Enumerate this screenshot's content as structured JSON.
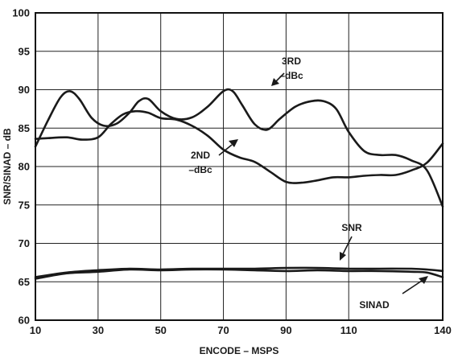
{
  "chart_data": {
    "type": "line",
    "title": "",
    "xlabel": "ENCODE – MSPS",
    "ylabel": "SNR/SINAD – dB",
    "xlim": [
      10,
      140
    ],
    "ylim": [
      60,
      100
    ],
    "x_ticks": [
      10,
      30,
      50,
      70,
      90,
      110,
      140
    ],
    "y_ticks": [
      60,
      65,
      70,
      75,
      80,
      85,
      90,
      95,
      100
    ],
    "grid": true,
    "series": [
      {
        "name": "3RD –dBc",
        "x": [
          10,
          14,
          18,
          21,
          24,
          28,
          32,
          36,
          40,
          43,
          46,
          50,
          55,
          60,
          65,
          70,
          73,
          76,
          80,
          84,
          88,
          93,
          98,
          102,
          106,
          110,
          115,
          120,
          125,
          130,
          135,
          140
        ],
        "y": [
          82.6,
          86.0,
          89.0,
          89.8,
          88.8,
          86.3,
          85.3,
          85.6,
          87.0,
          88.5,
          88.8,
          87.2,
          86.2,
          86.4,
          87.8,
          89.8,
          89.8,
          88.0,
          85.5,
          84.8,
          86.2,
          87.8,
          88.5,
          88.5,
          87.5,
          84.5,
          82.0,
          81.5,
          81.5,
          80.8,
          79.5,
          74.8
        ]
      },
      {
        "name": "2ND –dBc",
        "x": [
          10,
          14,
          20,
          25,
          30,
          34,
          38,
          42,
          46,
          50,
          55,
          60,
          65,
          70,
          75,
          80,
          85,
          90,
          95,
          100,
          105,
          110,
          115,
          120,
          125,
          130,
          135,
          140
        ],
        "y": [
          83.6,
          83.7,
          83.8,
          83.5,
          83.8,
          85.5,
          86.8,
          87.2,
          87.0,
          86.3,
          86.1,
          85.3,
          84.0,
          82.2,
          81.2,
          80.6,
          79.3,
          78.0,
          77.9,
          78.2,
          78.6,
          78.6,
          78.8,
          78.9,
          78.9,
          79.5,
          80.5,
          83.0
        ]
      },
      {
        "name": "SNR",
        "x": [
          10,
          20,
          30,
          40,
          50,
          60,
          70,
          80,
          90,
          100,
          110,
          120,
          130,
          135,
          140
        ],
        "y": [
          65.6,
          66.2,
          66.5,
          66.7,
          66.6,
          66.7,
          66.7,
          66.7,
          66.8,
          66.8,
          66.7,
          66.7,
          66.7,
          66.6,
          66.4
        ]
      },
      {
        "name": "SINAD",
        "x": [
          10,
          20,
          30,
          40,
          50,
          60,
          70,
          80,
          90,
          100,
          110,
          120,
          130,
          135,
          140
        ],
        "y": [
          65.4,
          66.1,
          66.3,
          66.6,
          66.5,
          66.6,
          66.6,
          66.5,
          66.4,
          66.5,
          66.4,
          66.4,
          66.3,
          66.2,
          65.6
        ]
      }
    ],
    "annotations": {
      "third": [
        "3RD",
        "–dBc"
      ],
      "second": [
        "2ND",
        "–dBc"
      ],
      "snr": "SNR",
      "sinad": "SINAD"
    }
  }
}
